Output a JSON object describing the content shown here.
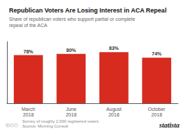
{
  "chart_data": {
    "type": "bar",
    "title": "Republican Voters Are Losing Interest in ACA Repeal",
    "subtitle": "Share of republican voters who support partial or complete repeal of the ACA",
    "categories": [
      "March\n2018",
      "June\n2018",
      "August\n2018",
      "October\n2018"
    ],
    "values": [
      78,
      80,
      83,
      74
    ],
    "value_labels": [
      "78%",
      "80%",
      "83%",
      "74%"
    ],
    "data_labels": true,
    "color": "#d62b1e",
    "ylim": [
      0,
      100
    ],
    "grid": false,
    "tick_labels": "x",
    "annotations": [
      "Survey of roughly 2,000 registered voters\nSource: Morning Consult",
      "ⓒⓘⓘ",
      "statista"
    ]
  }
}
